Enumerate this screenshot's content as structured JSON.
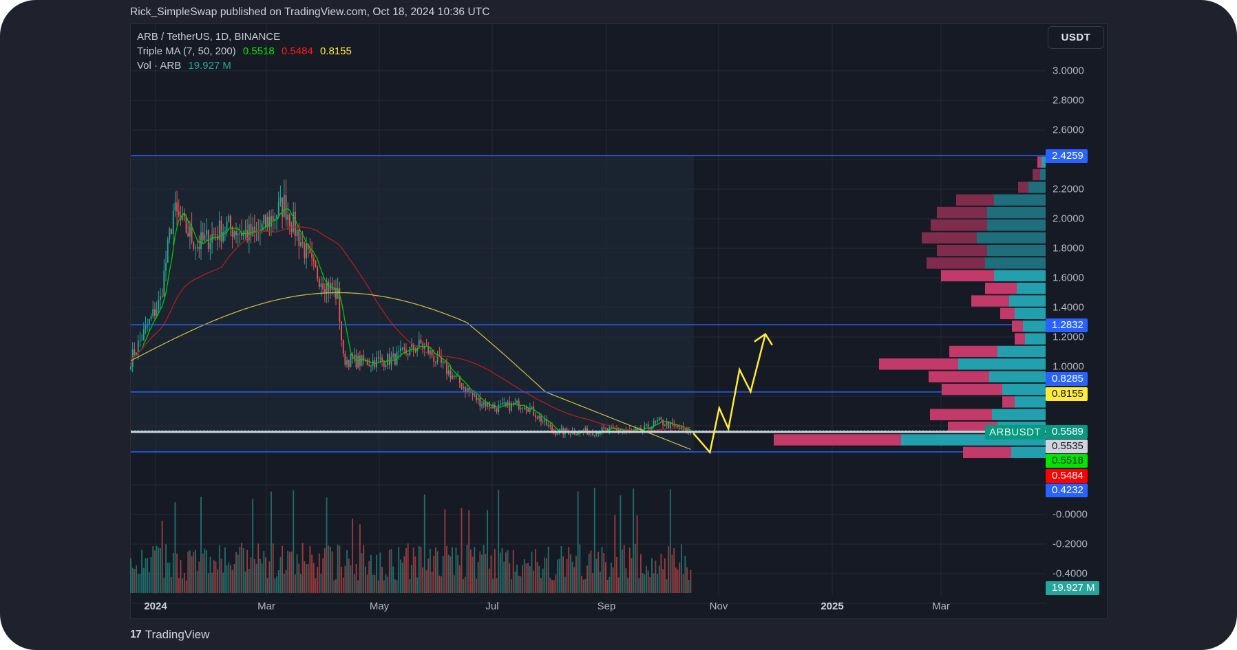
{
  "header": {
    "publisher_line": "Rick_SimpleSwap published on TradingView.com, Oct 18, 2024 10:36 UTC"
  },
  "legend": {
    "symbol_line": "ARB / TetherUS, 1D, BINANCE",
    "ma_label": "Triple MA (7, 50, 200)",
    "ma_values": [
      "0.5518",
      "0.5484",
      "0.8155"
    ],
    "ma_colors": [
      "#00e600",
      "#ff1a1a",
      "#ffeb3b"
    ],
    "vol_label": "Vol · ARB",
    "vol_value": "19.927 M"
  },
  "currency_button": "USDT",
  "y_axis": {
    "ticks": [
      "3.0000",
      "2.8000",
      "2.6000",
      "2.2000",
      "2.0000",
      "1.8000",
      "1.6000",
      "1.4000",
      "1.2000",
      "1.0000",
      "-0.0000",
      "-0.2000",
      "-0.4000"
    ],
    "tick_values": [
      3.0,
      2.8,
      2.6,
      2.2,
      2.0,
      1.8,
      1.6,
      1.4,
      1.2,
      1.0,
      0.0,
      -0.2,
      -0.4
    ]
  },
  "price_tags": [
    {
      "label": "2.4259",
      "value": 2.4259,
      "bg": "#2962ff",
      "fg": "#ffffff"
    },
    {
      "label": "1.2832",
      "value": 1.2832,
      "bg": "#2962ff",
      "fg": "#ffffff"
    },
    {
      "label": "0.8285",
      "value": 0.8285,
      "bg": "#2962ff",
      "fg": "#ffffff"
    },
    {
      "label": "0.8155",
      "value": 0.8155,
      "bg": "#ffeb3b",
      "fg": "#131722"
    },
    {
      "label": "0.5589",
      "value": 0.5589,
      "bg": "#089981",
      "fg": "#ffffff"
    },
    {
      "label": "0.5535",
      "value": 0.5535,
      "bg": "#d1d4dc",
      "fg": "#131722"
    },
    {
      "label": "0.5518",
      "value": 0.5518,
      "bg": "#00e600",
      "fg": "#131722"
    },
    {
      "label": "0.5484",
      "value": 0.5484,
      "bg": "#ff0000",
      "fg": "#ffffff"
    },
    {
      "label": "0.4232",
      "value": 0.4232,
      "bg": "#2962ff",
      "fg": "#ffffff"
    }
  ],
  "volume_tag": {
    "label": "19.927 M",
    "bg": "#26a69a",
    "fg": "#ffffff"
  },
  "symbol_tag": "ARBUSDT",
  "x_axis": {
    "labels": [
      {
        "text": "2024",
        "x": 226,
        "bold": true
      },
      {
        "text": "Mar",
        "x": 387,
        "bold": false
      },
      {
        "text": "May",
        "x": 551,
        "bold": false
      },
      {
        "text": "Jul",
        "x": 715,
        "bold": false
      },
      {
        "text": "Sep",
        "x": 881,
        "bold": false
      },
      {
        "text": "Nov",
        "x": 1044,
        "bold": false
      },
      {
        "text": "2025",
        "x": 1209,
        "bold": true
      },
      {
        "text": "Mar",
        "x": 1367,
        "bold": false
      }
    ]
  },
  "horizontal_levels": [
    2.4259,
    1.2832,
    0.8285,
    0.4232
  ],
  "current_price_line": 0.5589,
  "footer": {
    "brand": "TradingView",
    "logo_glyph": "17"
  },
  "colors": {
    "up": "#26a69a",
    "down": "#ef5350",
    "ma7": "#00c800",
    "ma50": "#b71c1c",
    "ma200": "#c6b840",
    "level_line": "#2962ff",
    "arrow": "#ffeb3b",
    "profile_up": "#22a0ad",
    "profile_down": "#c2396a",
    "profile_up_dim": "#1e6e7c",
    "profile_down_dim": "#7f2c4d"
  },
  "chart_data": {
    "type": "candlestick",
    "title": "ARB / TetherUS, 1D, BINANCE",
    "xlabel": "",
    "ylabel": "USDT",
    "ylim": [
      -0.45,
      3.15
    ],
    "x_range": [
      "2023-12-20",
      "2025-04-15"
    ],
    "indicators": {
      "triple_ma": {
        "periods": [
          7,
          50,
          200
        ],
        "last_values": [
          0.5518,
          0.5484,
          0.8155
        ]
      },
      "volume_last": "19.927 M"
    },
    "price_path_monthly": {
      "dates": [
        "2023-12-20",
        "2024-01-05",
        "2024-01-12",
        "2024-01-25",
        "2024-02-10",
        "2024-02-25",
        "2024-03-12",
        "2024-03-28",
        "2024-04-10",
        "2024-04-13",
        "2024-04-25",
        "2024-05-10",
        "2024-05-25",
        "2024-06-10",
        "2024-06-25",
        "2024-07-05",
        "2024-07-20",
        "2024-08-05",
        "2024-08-20",
        "2024-09-05",
        "2024-09-20",
        "2024-10-01",
        "2024-10-18"
      ],
      "close": [
        1.05,
        1.45,
        2.05,
        1.82,
        1.95,
        1.88,
        2.1,
        1.65,
        1.48,
        1.05,
        1.03,
        1.05,
        1.15,
        0.95,
        0.77,
        0.72,
        0.75,
        0.56,
        0.56,
        0.57,
        0.56,
        0.63,
        0.5535
      ]
    },
    "horizontal_levels": [
      2.4259,
      1.2832,
      0.8285,
      0.4232
    ],
    "current_price": 0.5589,
    "projection_arrow": {
      "x": [
        "2024-10-18",
        "2024-10-27",
        "2024-11-01",
        "2024-11-06",
        "2024-11-12",
        "2024-11-18",
        "2024-11-26"
      ],
      "y": [
        0.55,
        0.42,
        0.72,
        0.58,
        0.98,
        0.83,
        1.22
      ]
    },
    "volume_profile": {
      "rows_price_top": [
        2.4259,
        2.34,
        2.26,
        2.17,
        2.09,
        2.01,
        1.92,
        1.84,
        1.76,
        1.67,
        1.59,
        1.51,
        1.42,
        1.34,
        1.26,
        1.17,
        1.09,
        1.01,
        0.92,
        0.84,
        0.76,
        0.67,
        0.59,
        0.51
      ],
      "up_width": [
        6,
        8,
        25,
        75,
        85,
        85,
        100,
        85,
        88,
        75,
        42,
        53,
        45,
        33,
        30,
        70,
        127,
        82,
        63,
        45,
        78,
        70,
        210,
        50
      ],
      "down_width": [
        6,
        11,
        15,
        55,
        73,
        82,
        80,
        73,
        85,
        77,
        46,
        55,
        21,
        16,
        15,
        70,
        115,
        88,
        88,
        18,
        90,
        72,
        185,
        70
      ]
    },
    "legend": [
      "Triple MA (7, 50, 200)",
      "Vol · ARB"
    ],
    "grid": true
  }
}
